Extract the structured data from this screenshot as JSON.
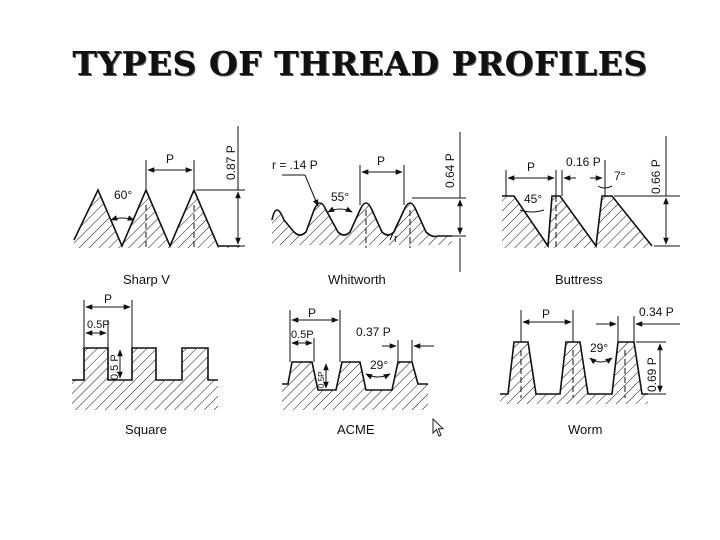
{
  "title": "TYPES OF THREAD PROFILES",
  "profiles": {
    "sharp_v": {
      "caption": "Sharp V",
      "pitch": "P",
      "angle": "60°",
      "depth": "0.87 P"
    },
    "whitworth": {
      "caption": "Whitworth",
      "radius": "r = .14 P",
      "pitch": "P",
      "angle": "55°",
      "depth": "0.64 P",
      "root_radius": "r"
    },
    "buttress": {
      "caption": "Buttress",
      "pitch": "P",
      "flat": "0.16 P",
      "back_angle": "7°",
      "face_angle": "45°",
      "depth": "0.66 P"
    },
    "square": {
      "caption": "Square",
      "pitch": "P",
      "width": "0.5P",
      "depth": "0.5 P"
    },
    "acme": {
      "caption": "ACME",
      "pitch": "P",
      "width": "0.5P",
      "depth": "0.5P",
      "flat": "0.37 P",
      "angle": "29°"
    },
    "worm": {
      "caption": "Worm",
      "pitch": "P",
      "flat": "0.34 P",
      "angle": "29°",
      "depth": "0.69 P"
    }
  }
}
